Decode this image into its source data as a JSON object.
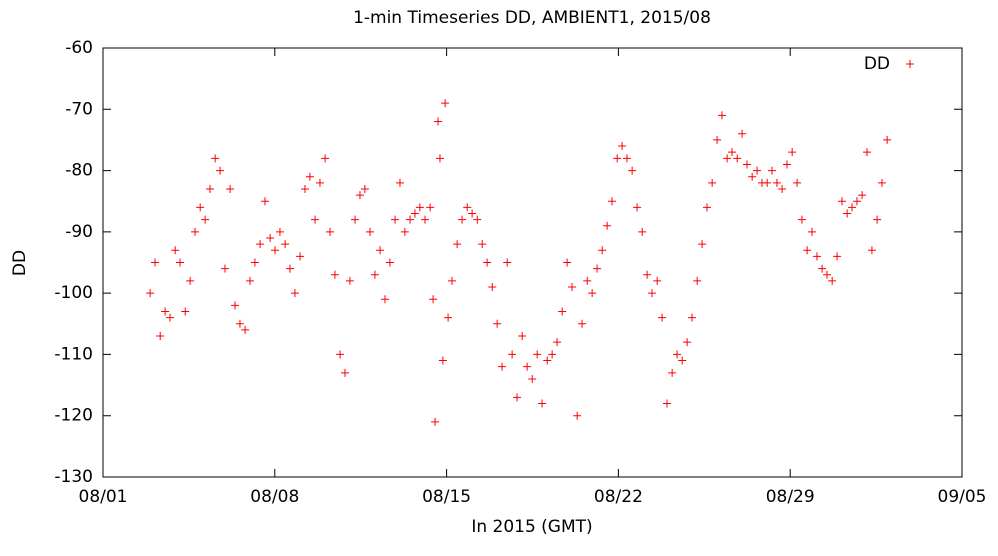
{
  "chart_data": {
    "type": "scatter",
    "title": "1-min Timeseries DD, AMBIENT1, 2015/08",
    "x_label": "In 2015 (GMT)",
    "y_label": "DD",
    "x": [
      1.92,
      2.12,
      2.33,
      2.53,
      2.73,
      2.94,
      3.14,
      3.35,
      3.55,
      3.75,
      3.96,
      4.16,
      4.36,
      4.57,
      4.77,
      4.97,
      5.18,
      5.38,
      5.58,
      5.79,
      5.99,
      6.19,
      6.4,
      6.6,
      6.81,
      7.01,
      7.21,
      7.42,
      7.62,
      7.82,
      8.03,
      8.23,
      8.43,
      8.64,
      8.84,
      9.05,
      9.25,
      9.45,
      9.66,
      9.86,
      10.06,
      10.27,
      10.47,
      10.67,
      10.88,
      11.08,
      11.29,
      11.49,
      11.69,
      11.9,
      12.1,
      12.3,
      12.51,
      12.71,
      12.91,
      13.12,
      13.33,
      13.45,
      13.53,
      13.65,
      13.73,
      13.85,
      13.94,
      14.06,
      14.22,
      14.43,
      14.63,
      14.84,
      15.04,
      15.25,
      15.45,
      15.65,
      15.86,
      16.06,
      16.26,
      16.47,
      16.67,
      16.87,
      17.08,
      17.28,
      17.49,
      17.69,
      17.89,
      18.1,
      18.3,
      18.5,
      18.71,
      18.91,
      19.11,
      19.32,
      19.52,
      19.73,
      19.93,
      20.13,
      20.34,
      20.54,
      20.74,
      20.95,
      21.15,
      21.35,
      21.56,
      21.76,
      21.97,
      22.17,
      22.37,
      22.58,
      22.78,
      22.98,
      23.19,
      23.39,
      23.6,
      23.8,
      24.0,
      24.21,
      24.41,
      24.61,
      24.82,
      25.02,
      25.22,
      25.43,
      25.63,
      25.84,
      26.04,
      26.24,
      26.45,
      26.65,
      26.85,
      27.06,
      27.26,
      27.46,
      27.67,
      27.87,
      28.08,
      28.28,
      28.48,
      28.69,
      28.89,
      29.09,
      29.3,
      29.5,
      29.71,
      29.91,
      30.11,
      30.32,
      30.52,
      30.72,
      30.93,
      31.13,
      31.33,
      31.54,
      31.74,
      31.95
    ],
    "series": [
      {
        "name": "DD",
        "color": "#ff0000",
        "values": [
          -100,
          -95,
          -107,
          -103,
          -104,
          -93,
          -95,
          -103,
          -98,
          -90,
          -86,
          -88,
          -83,
          -78,
          -80,
          -96,
          -83,
          -102,
          -105,
          -106,
          -98,
          -95,
          -92,
          -85,
          -91,
          -93,
          -90,
          -92,
          -96,
          -100,
          -94,
          -83,
          -81,
          -88,
          -82,
          -78,
          -90,
          -97,
          -110,
          -113,
          -98,
          -88,
          -84,
          -83,
          -90,
          -97,
          -93,
          -101,
          -95,
          -88,
          -82,
          -90,
          -88,
          -87,
          -86,
          -88,
          -86,
          -101,
          -121,
          -72,
          -78,
          -111,
          -69,
          -104,
          -98,
          -92,
          -88,
          -86,
          -87,
          -88,
          -92,
          -95,
          -99,
          -105,
          -112,
          -95,
          -110,
          -117,
          -107,
          -112,
          -114,
          -110,
          -118,
          -111,
          -110,
          -108,
          -103,
          -95,
          -99,
          -120,
          -105,
          -98,
          -100,
          -96,
          -93,
          -89,
          -85,
          -78,
          -76,
          -78,
          -80,
          -86,
          -90,
          -97,
          -100,
          -98,
          -104,
          -118,
          -113,
          -110,
          -111,
          -108,
          -104,
          -98,
          -92,
          -86,
          -82,
          -75,
          -71,
          -78,
          -77,
          -78,
          -74,
          -79,
          -81,
          -80,
          -82,
          -82,
          -80,
          -82,
          -83,
          -79,
          -77,
          -82,
          -88,
          -93,
          -90,
          -94,
          -96,
          -97,
          -98,
          -94,
          -85,
          -87,
          -86,
          -85,
          -84,
          -77,
          -93,
          -88,
          -82,
          -75
        ]
      }
    ],
    "xlim": [
      0,
      35
    ],
    "xticks": [
      {
        "value": 0,
        "label": "08/01"
      },
      {
        "value": 7,
        "label": "08/08"
      },
      {
        "value": 14,
        "label": "08/15"
      },
      {
        "value": 21,
        "label": "08/22"
      },
      {
        "value": 28,
        "label": "08/29"
      },
      {
        "value": 35,
        "label": "09/05"
      }
    ],
    "ylim": [
      -130,
      -60
    ],
    "yticks": [
      -130,
      -120,
      -110,
      -100,
      -90,
      -80,
      -70,
      -60
    ],
    "legend": "top-right"
  }
}
